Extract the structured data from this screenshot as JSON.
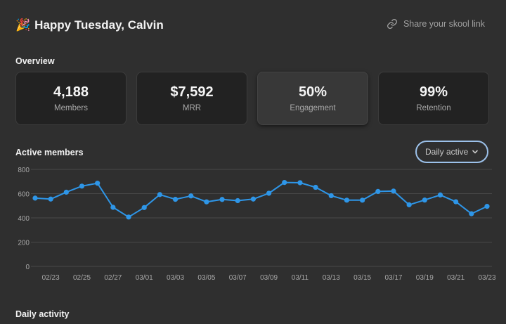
{
  "header": {
    "emoji": "🎉",
    "greeting": "Happy Tuesday, Calvin",
    "share_label": "Share your skool link"
  },
  "overview": {
    "title": "Overview",
    "cards": [
      {
        "value": "4,188",
        "label": "Members"
      },
      {
        "value": "$7,592",
        "label": "MRR"
      },
      {
        "value": "50%",
        "label": "Engagement"
      },
      {
        "value": "99%",
        "label": "Retention"
      }
    ]
  },
  "active_members": {
    "title": "Active members",
    "dropdown_value": "Daily active"
  },
  "daily_activity": {
    "title": "Daily activity"
  },
  "colors": {
    "accent": "#2e96e8",
    "background": "#2f2f2f",
    "card": "#222222"
  },
  "icons": {
    "share": "link-icon",
    "dropdown": "chevron-down-icon"
  },
  "chart_data": {
    "type": "line",
    "x": [
      "02/22",
      "02/23",
      "02/24",
      "02/25",
      "02/26",
      "02/27",
      "02/28",
      "03/01",
      "03/02",
      "03/03",
      "03/04",
      "03/05",
      "03/06",
      "03/07",
      "03/08",
      "03/09",
      "03/10",
      "03/11",
      "03/12",
      "03/13",
      "03/14",
      "03/15",
      "03/16",
      "03/17",
      "03/18",
      "03/19",
      "03/20",
      "03/21",
      "03/22",
      "03/23"
    ],
    "values": [
      563,
      555,
      612,
      662,
      686,
      487,
      407,
      485,
      592,
      553,
      581,
      532,
      552,
      542,
      555,
      603,
      692,
      690,
      652,
      583,
      546,
      546,
      618,
      621,
      508,
      547,
      589,
      533,
      434,
      495
    ],
    "tick_labels": [
      "02/23",
      "02/25",
      "02/27",
      "03/01",
      "03/03",
      "03/05",
      "03/07",
      "03/09",
      "03/11",
      "03/13",
      "03/15",
      "03/17",
      "03/19",
      "03/21",
      "03/23"
    ],
    "y_ticks": [
      "0",
      "200",
      "400",
      "600",
      "800"
    ],
    "ylim": [
      0,
      800
    ],
    "grid": true,
    "xlabel": "",
    "ylabel": ""
  }
}
